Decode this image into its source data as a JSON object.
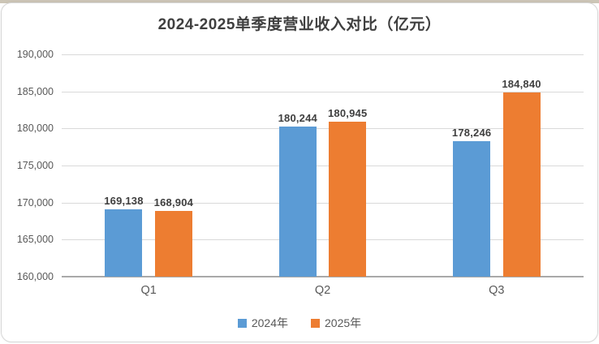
{
  "title": "2024-2025单季度营业收入对比（亿元）",
  "colors": {
    "series_2024": "#5B9BD5",
    "series_2025": "#ED7D31",
    "gridline": "#d9d9d9",
    "axis_line": "#a9a9a9",
    "text_primary": "#3f3f3f",
    "text_secondary": "#595959"
  },
  "chart_data": {
    "type": "bar",
    "title": "2024-2025单季度营业收入对比（亿元）",
    "categories": [
      "Q1",
      "Q2",
      "Q3"
    ],
    "series": [
      {
        "name": "2024年",
        "color": "#5B9BD5",
        "values": [
          169138,
          180244,
          178246
        ]
      },
      {
        "name": "2025年",
        "color": "#ED7D31",
        "values": [
          168904,
          180945,
          184840
        ]
      }
    ],
    "data_labels": [
      [
        "169,138",
        "180,244",
        "178,246"
      ],
      [
        "168,904",
        "180,945",
        "184,840"
      ]
    ],
    "ylim": [
      160000,
      190000
    ],
    "ytick_step": 5000,
    "ytick_labels": [
      "160,000",
      "165,000",
      "170,000",
      "175,000",
      "180,000",
      "185,000",
      "190,000"
    ],
    "xlabel": "",
    "ylabel": "",
    "grid": true,
    "legend_position": "bottom"
  }
}
